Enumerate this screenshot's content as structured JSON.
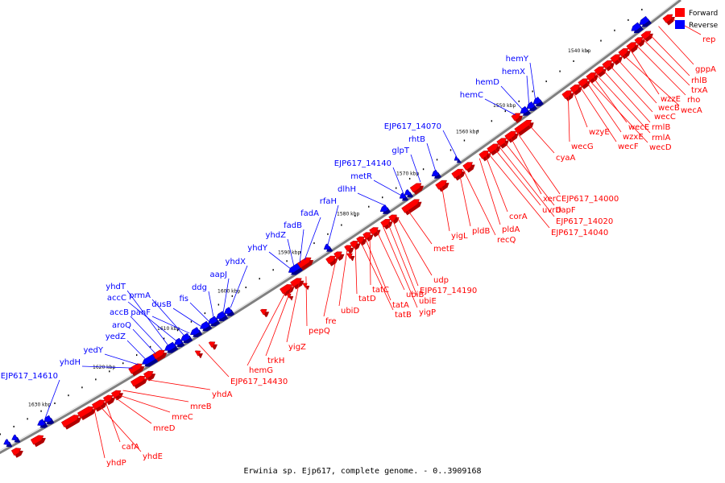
{
  "caption": "Erwinia sp. Ejp617, complete genome. - 0..3909168",
  "legend": [
    {
      "label": "Forward",
      "color": "#ff0000"
    },
    {
      "label": "Reverse",
      "color": "#0000ff"
    }
  ],
  "colors": {
    "forward": "#ff0000",
    "forward_dark": "#b00000",
    "reverse": "#0000ff",
    "reverse_dark": "#00008b",
    "backbone": "#808080"
  },
  "ticks": [
    "1540 kbp",
    "1550 kbp",
    "1560 kbp",
    "1570 kbp",
    "1580 kbp",
    "1590 kbp",
    "1600 kbp",
    "1610 kbp",
    "1620 kbp",
    "1630 kbp"
  ],
  "labels_reverse": [
    "hemY",
    "hemX",
    "hemD",
    "hemC",
    "EJP617_14070",
    "rhtB",
    "glpT",
    "EJP617_14140",
    "metR",
    "dlhH",
    "rfaH",
    "fadA",
    "fadB",
    "yhdZ",
    "yhdY",
    "yhdX",
    "aapJ",
    "ddg",
    "fis",
    "dusB",
    "panF",
    "prmA",
    "accC",
    "yhdT",
    "accB",
    "aroQ",
    "yedZ",
    "yedY",
    "yhdH",
    "EJP617_14610"
  ],
  "labels_forward": [
    "rep",
    "gppA",
    "rhlB",
    "trxA",
    "rho",
    "wzzE",
    "wecA",
    "wecB",
    "wecC",
    "rmlB",
    "rmlA",
    "wecD",
    "wecE",
    "wzxE",
    "wecF",
    "wzyE",
    "wecG",
    "cyaA",
    "EJP617_14000",
    "xerC",
    "dapF",
    "uvrD",
    "EJP617_14020",
    "EJP617_14040",
    "corA",
    "pldA",
    "recQ",
    "pldB",
    "yigL",
    "metE",
    "udp",
    "EJP617_14190",
    "ubiE",
    "yigP",
    "ubiB",
    "tatC",
    "tatA",
    "tatB",
    "tatD",
    "ubiD",
    "fre",
    "pepQ",
    "yigZ",
    "trkH",
    "hemG",
    "EJP617_14430",
    "yhdA",
    "mreB",
    "mreC",
    "mreD",
    "cafA",
    "yhdE",
    "yhdP"
  ]
}
